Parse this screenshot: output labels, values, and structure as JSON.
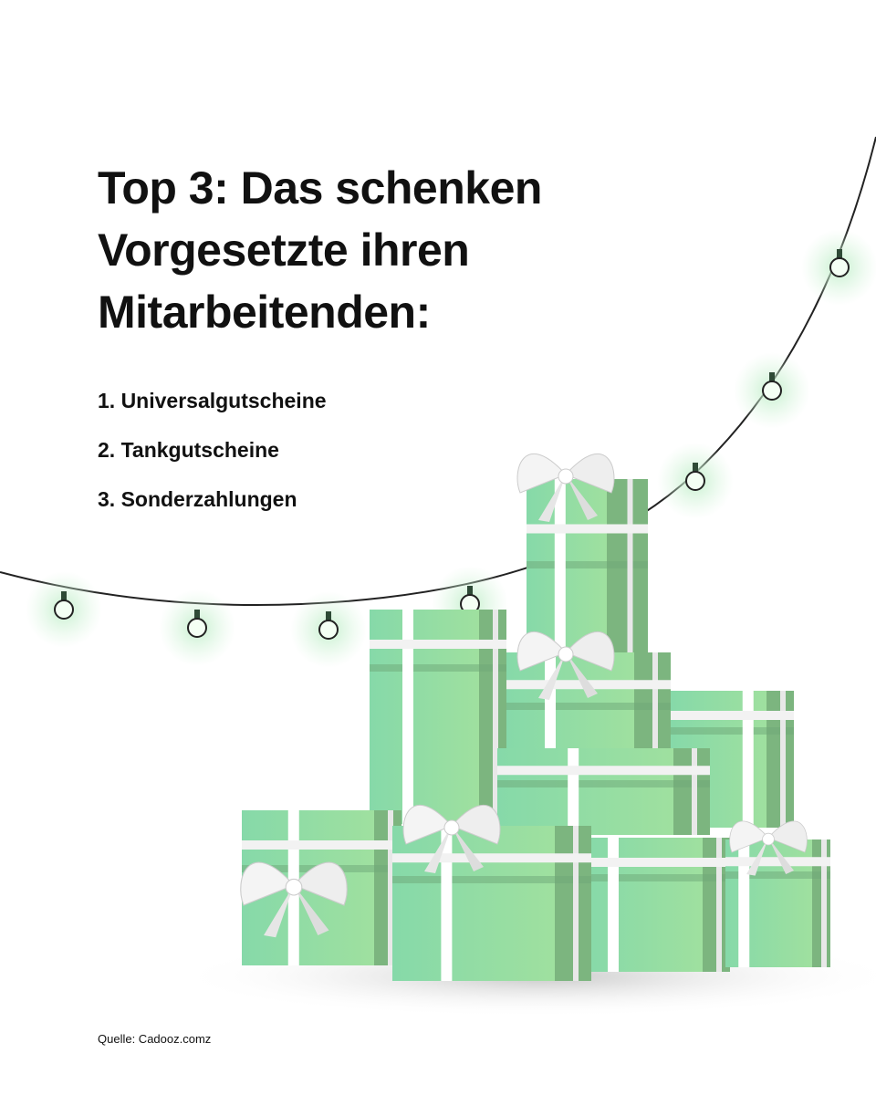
{
  "header": {
    "title": "Top 3: Das schenken Vorgesetzte ihren Mitarbeitenden:"
  },
  "list": {
    "items": [
      "1. Universalgutscheine",
      "2. Tankgutscheine",
      "3. Sonderzahlungen"
    ]
  },
  "footer": {
    "source": "Quelle: Cadooz.comz"
  }
}
